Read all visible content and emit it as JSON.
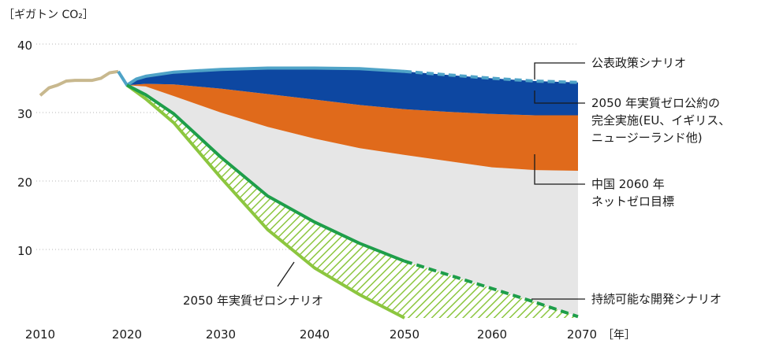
{
  "chart_data": {
    "type": "area",
    "ylabel": "［ギガトン CO₂］",
    "xlabel": "［年］",
    "xlim": [
      2010,
      2070
    ],
    "ylim": [
      0,
      40
    ],
    "x_ticks": [
      "2010",
      "2020",
      "2030",
      "2040",
      "2050",
      "2060",
      "2070"
    ],
    "y_ticks": [
      "10",
      "20",
      "30",
      "40"
    ],
    "grid": "horizontal dotted",
    "colors": {
      "history": "#c8b88e",
      "stated_policies_line": "#4fa3c7",
      "net_zero_pledges_area": "#0d47a1",
      "china_area": "#e06a1b",
      "sustainable_area": "#e6e6e6",
      "nze_hatch": "#8cc63f",
      "sustainable_line": "#1e9e4a"
    },
    "series": [
      {
        "key": "history",
        "x": [
          2010,
          2011,
          2012,
          2013,
          2014,
          2015,
          2016,
          2017,
          2018,
          2019
        ],
        "y": [
          32.5,
          33.6,
          34.0,
          34.6,
          34.7,
          34.7,
          34.7,
          35.0,
          35.8,
          36.0
        ]
      },
      {
        "key": "stated_policies",
        "x": [
          2019,
          2020,
          2021,
          2022,
          2025,
          2030,
          2035,
          2040,
          2045,
          2050,
          2055,
          2060,
          2065,
          2070
        ],
        "y": [
          36.0,
          34.0,
          34.9,
          35.3,
          35.9,
          36.3,
          36.5,
          36.5,
          36.4,
          36.0,
          35.5,
          35.0,
          34.6,
          34.4
        ],
        "dashed_from": 2050
      },
      {
        "key": "net_zero_pledges",
        "x": [
          2020,
          2022,
          2025,
          2030,
          2035,
          2040,
          2045,
          2050,
          2055,
          2060,
          2065,
          2070
        ],
        "y": [
          34.0,
          34.2,
          34.1,
          33.5,
          32.7,
          31.9,
          31.1,
          30.5,
          30.1,
          29.8,
          29.6,
          29.6
        ]
      },
      {
        "key": "china_2060",
        "x": [
          2020,
          2022,
          2025,
          2030,
          2035,
          2040,
          2045,
          2050,
          2055,
          2060,
          2065,
          2070
        ],
        "y": [
          34.0,
          33.8,
          32.4,
          30.0,
          27.9,
          26.2,
          24.8,
          23.8,
          22.9,
          22.0,
          21.6,
          21.5
        ]
      },
      {
        "key": "sustainable_development",
        "x": [
          2020,
          2021,
          2022,
          2025,
          2030,
          2035,
          2040,
          2045,
          2050,
          2055,
          2060,
          2065,
          2070
        ],
        "y": [
          34.0,
          33.3,
          32.6,
          29.8,
          23.5,
          17.8,
          14.0,
          10.9,
          8.3,
          6.3,
          4.3,
          2.3,
          0.2
        ],
        "dashed_from": 2050
      },
      {
        "key": "net_zero_2050",
        "x": [
          2020,
          2021,
          2022,
          2025,
          2030,
          2035,
          2040,
          2045,
          2050
        ],
        "y": [
          34.0,
          33.0,
          32.0,
          28.5,
          20.5,
          12.9,
          7.3,
          3.4,
          0.0
        ]
      }
    ],
    "annotations": [
      {
        "key": "stated_policies",
        "text": "公表政策シナリオ"
      },
      {
        "key": "net_zero_pledges",
        "lines": [
          "2050 年実質ゼロ公約の",
          "完全実施(EU、イギリス、",
          "ニュージーランド他)"
        ]
      },
      {
        "key": "china_2060",
        "lines": [
          "中国 2060 年",
          "ネットゼロ目標"
        ]
      },
      {
        "key": "net_zero_2050",
        "text": "2050 年実質ゼロシナリオ"
      },
      {
        "key": "sustainable_development",
        "text": "持続可能な開発シナリオ"
      }
    ]
  }
}
